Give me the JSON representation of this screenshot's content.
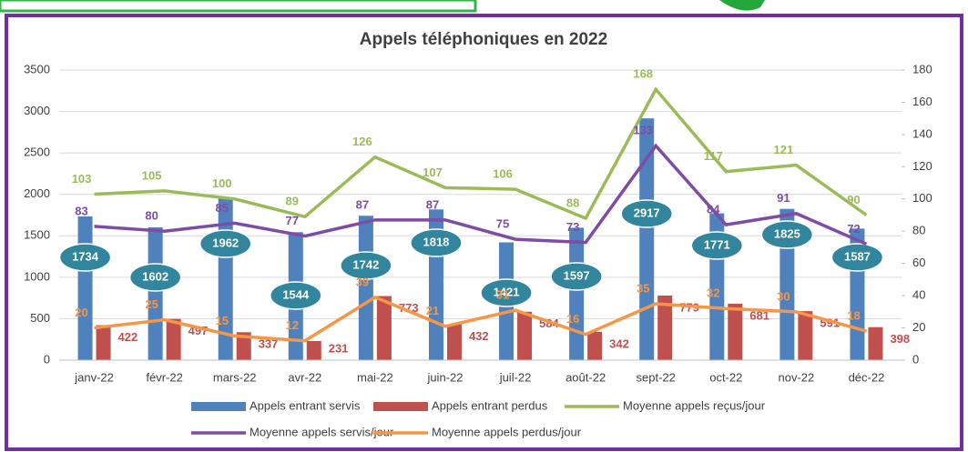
{
  "chart_data": {
    "type": "bar",
    "title": "Appels téléphoniques en 2022",
    "categories": [
      "janv-22",
      "févr-22",
      "mars-22",
      "avr-22",
      "mai-22",
      "juin-22",
      "juil-22",
      "août-22",
      "sept-22",
      "oct-22",
      "nov-22",
      "déc-22"
    ],
    "ylim": [
      0,
      3500
    ],
    "yticks": [
      0,
      500,
      1000,
      1500,
      2000,
      2500,
      3000,
      3500
    ],
    "y2lim": [
      0,
      180
    ],
    "y2ticks": [
      0,
      20,
      40,
      60,
      80,
      100,
      120,
      140,
      160,
      180
    ],
    "series": [
      {
        "name": "Appels entrant servis",
        "type": "bar",
        "color": "#4f81bd",
        "values": [
          1734,
          1602,
          1962,
          1544,
          1742,
          1818,
          1421,
          1597,
          2917,
          1771,
          1825,
          1587
        ]
      },
      {
        "name": "Appels entrant perdus",
        "type": "bar",
        "color": "#c0504d",
        "values": [
          422,
          497,
          337,
          231,
          773,
          432,
          584,
          342,
          779,
          681,
          591,
          398
        ]
      },
      {
        "name": "Moyenne appels reçus/jour",
        "type": "line",
        "axis": "y2",
        "color": "#9bbb59",
        "values": [
          103,
          105,
          100,
          89,
          126,
          107,
          106,
          88,
          168,
          117,
          121,
          90
        ]
      },
      {
        "name": "Moyenne appels servis/jour",
        "type": "line",
        "axis": "y2",
        "color": "#7f4ca5",
        "values": [
          83,
          80,
          85,
          77,
          87,
          87,
          75,
          73,
          133,
          84,
          91,
          72
        ]
      },
      {
        "name": "Moyenne appels perdus/jour",
        "type": "line",
        "axis": "y2",
        "color": "#f79646",
        "values": [
          20,
          25,
          15,
          12,
          39,
          21,
          31,
          16,
          35,
          32,
          30,
          18
        ]
      }
    ]
  }
}
